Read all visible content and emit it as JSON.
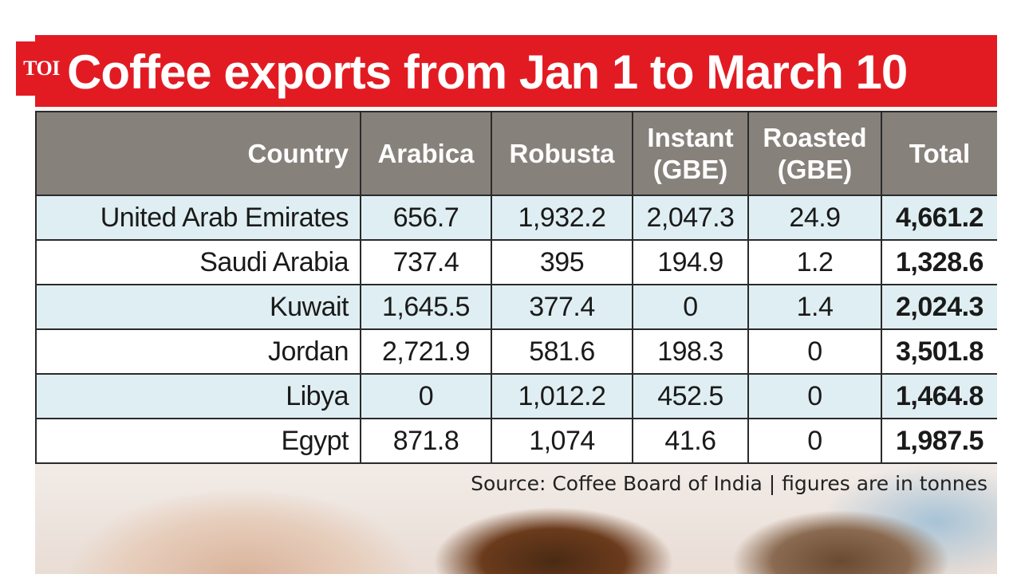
{
  "logo": "TOI",
  "chart_data": {
    "type": "table",
    "title": "Coffee exports from Jan 1 to March 10",
    "columns": [
      "Country",
      "Arabica",
      "Robusta",
      "Instant (GBE)",
      "Roasted (GBE)",
      "Total"
    ],
    "column_lines": [
      [
        "Country"
      ],
      [
        "Arabica"
      ],
      [
        "Robusta"
      ],
      [
        "Instant",
        "(GBE)"
      ],
      [
        "Roasted",
        "(GBE)"
      ],
      [
        "Total"
      ]
    ],
    "rows": [
      [
        "United Arab Emirates",
        "656.7",
        "1,932.2",
        "2,047.3",
        "24.9",
        "4,661.2"
      ],
      [
        "Saudi Arabia",
        "737.4",
        "395",
        "194.9",
        "1.2",
        "1,328.6"
      ],
      [
        "Kuwait",
        "1,645.5",
        "377.4",
        "0",
        "1.4",
        "2,024.3"
      ],
      [
        "Jordan",
        "2,721.9",
        "581.6",
        "198.3",
        "0",
        "3,501.8"
      ],
      [
        "Libya",
        "0",
        "1,012.2",
        "452.5",
        "0",
        "1,464.8"
      ],
      [
        "Egypt",
        "871.8",
        "1,074",
        "41.6",
        "0",
        "1,987.5"
      ]
    ],
    "source": "Source: Coffee Board of India | figures are in tonnes"
  },
  "colors": {
    "title_bg": "#e21b23",
    "header_bg": "#87817b",
    "row_alt_bg": "#dfeef2"
  }
}
